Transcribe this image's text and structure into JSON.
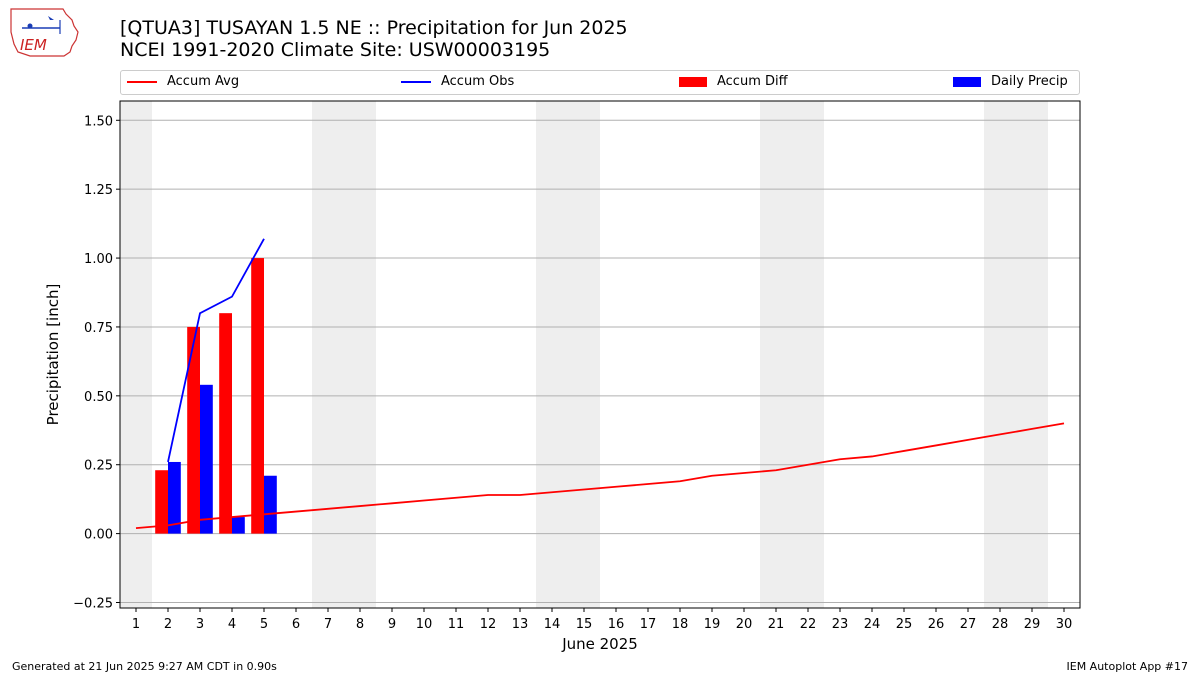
{
  "titles": {
    "line1": "[QTUA3] TUSAYAN 1.5 NE :: Precipitation for Jun 2025",
    "line2": "NCEI 1991-2020 Climate Site: USW00003195"
  },
  "logo": {
    "text": "IEM"
  },
  "footer": {
    "left": "Generated at 21 Jun 2025 9:27 AM CDT in 0.90s",
    "right": "IEM Autoplot App #17"
  },
  "colors": {
    "accum_avg": "#ff0000",
    "accum_obs": "#0000ff",
    "accum_diff": "#ff0000",
    "daily_precip": "#0000ff",
    "weekend_shade": "#eeeeee",
    "grid": "#b0b0b0"
  },
  "legend": [
    {
      "key": "accum_avg",
      "label": "Accum Avg",
      "kind": "line"
    },
    {
      "key": "accum_obs",
      "label": "Accum Obs",
      "kind": "line"
    },
    {
      "key": "accum_diff",
      "label": "Accum Diff",
      "kind": "box"
    },
    {
      "key": "daily_precip",
      "label": "Daily Precip",
      "kind": "box"
    }
  ],
  "chart_data": {
    "type": "bar",
    "xlabel": "June 2025",
    "ylabel": "Precipitation [inch]",
    "xlim": [
      0.5,
      30.5
    ],
    "ylim": [
      -0.27,
      1.57
    ],
    "yticks": [
      -0.25,
      0.0,
      0.25,
      0.5,
      0.75,
      1.0,
      1.25,
      1.5
    ],
    "ytick_labels": [
      "−0.25",
      "0.00",
      "0.25",
      "0.50",
      "0.75",
      "1.00",
      "1.25",
      "1.50"
    ],
    "xticks": [
      1,
      2,
      3,
      4,
      5,
      6,
      7,
      8,
      9,
      10,
      11,
      12,
      13,
      14,
      15,
      16,
      17,
      18,
      19,
      20,
      21,
      22,
      23,
      24,
      25,
      26,
      27,
      28,
      29,
      30
    ],
    "grid": "horizontal",
    "legend_position": "top",
    "weekend_days": [
      [
        1,
        1
      ],
      [
        7,
        8
      ],
      [
        14,
        15
      ],
      [
        21,
        22
      ],
      [
        28,
        29
      ]
    ],
    "series": [
      {
        "name": "Accum Avg",
        "type": "line",
        "x": [
          1,
          2,
          3,
          4,
          5,
          6,
          7,
          8,
          9,
          10,
          11,
          12,
          13,
          14,
          15,
          16,
          17,
          18,
          19,
          20,
          21,
          22,
          23,
          24,
          25,
          26,
          27,
          28,
          29,
          30
        ],
        "values": [
          0.02,
          0.03,
          0.05,
          0.06,
          0.07,
          0.08,
          0.09,
          0.1,
          0.11,
          0.12,
          0.13,
          0.14,
          0.14,
          0.15,
          0.16,
          0.17,
          0.18,
          0.19,
          0.21,
          0.22,
          0.23,
          0.25,
          0.27,
          0.28,
          0.3,
          0.32,
          0.34,
          0.36,
          0.38,
          0.4
        ]
      },
      {
        "name": "Accum Obs",
        "type": "line",
        "x": [
          2,
          3,
          4,
          5
        ],
        "values": [
          0.26,
          0.8,
          0.86,
          1.07
        ]
      },
      {
        "name": "Accum Diff",
        "type": "bar",
        "x": [
          2,
          3,
          4,
          5
        ],
        "values": [
          0.23,
          0.75,
          0.8,
          1.0
        ]
      },
      {
        "name": "Daily Precip",
        "type": "bar",
        "x": [
          2,
          3,
          4,
          5
        ],
        "values": [
          0.26,
          0.54,
          0.06,
          0.21
        ]
      }
    ]
  }
}
